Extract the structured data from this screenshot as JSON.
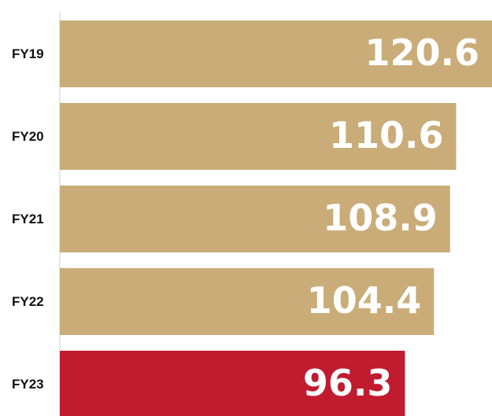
{
  "chart_data": {
    "type": "barh",
    "categories": [
      "FY19",
      "FY20",
      "FY21",
      "FY22",
      "FY23"
    ],
    "values": [
      120.6,
      110.6,
      108.9,
      104.4,
      96.3
    ],
    "colors": [
      "#c9ac78",
      "#c9ac78",
      "#c9ac78",
      "#c9ac78",
      "#c01b2f"
    ],
    "data_labels": true
  }
}
